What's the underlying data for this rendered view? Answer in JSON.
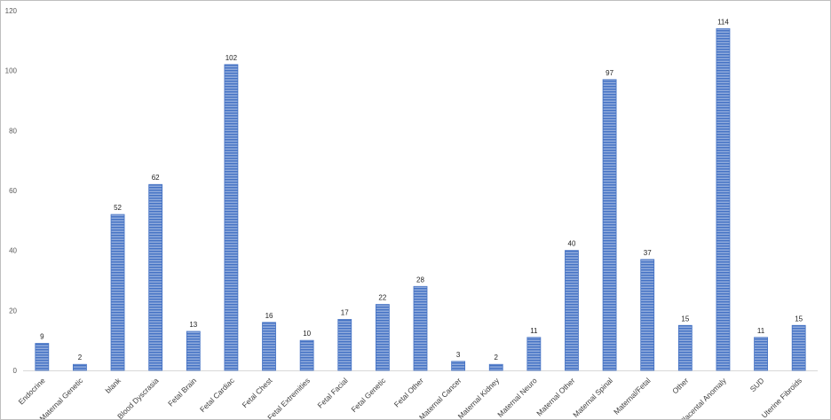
{
  "chart_data": {
    "type": "bar",
    "categories": [
      "Endocrine",
      "Maternal Genetic",
      "blank",
      "Blood Dyscrasia",
      "Fetal Brain",
      "Fetal Cardiac",
      "Fetal Chest",
      "Fetal Extremities",
      "Fetal Facial",
      "Fetal Genetic",
      "Fetal Other",
      "Maternal Cancer",
      "Maternal Kidney",
      "Maternal Neuro",
      "Maternal Other",
      "Maternal Spinal",
      "Maternal/Fetal",
      "Other",
      "Placental Anomaly",
      "SUD",
      "Uterine Fibroids"
    ],
    "values": [
      9,
      2,
      52,
      62,
      13,
      102,
      16,
      10,
      17,
      22,
      28,
      3,
      2,
      11,
      40,
      97,
      37,
      15,
      114,
      11,
      15
    ],
    "y_ticks": [
      "0",
      "20",
      "40",
      "60",
      "80",
      "100",
      "120"
    ],
    "ylim": [
      0,
      120
    ],
    "grid": false,
    "legend": "none",
    "data_labels": true,
    "bar_color": "#4472c4",
    "bar_fill_color": "#8faadc"
  }
}
